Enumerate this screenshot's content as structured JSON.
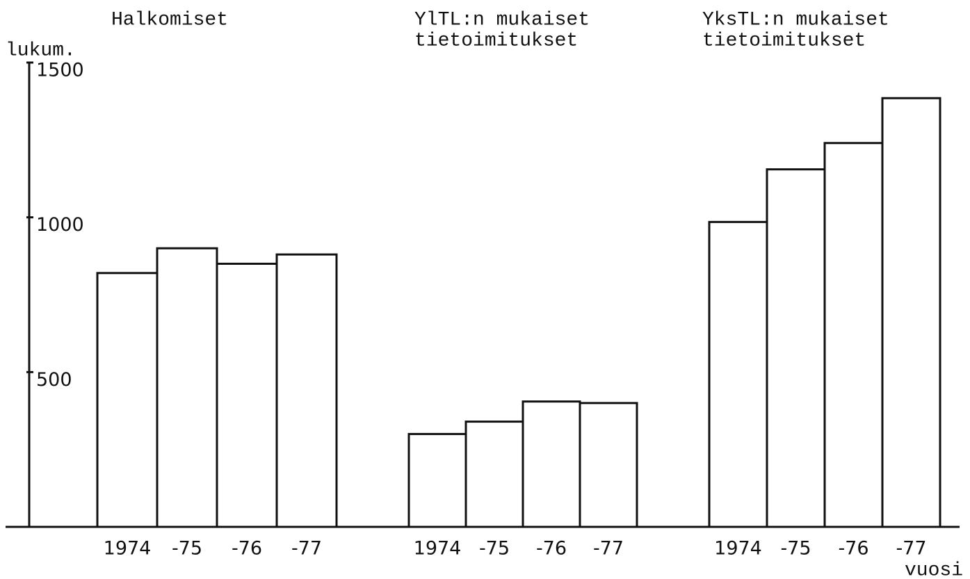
{
  "chart_data": {
    "type": "bar",
    "y_label": "lukum.",
    "x_label": "vuosi",
    "ylim": [
      0,
      1500
    ],
    "yticks": [
      500,
      1000,
      1500
    ],
    "color": "#111111",
    "groups": [
      {
        "name": [
          "Halkomiset"
        ],
        "categories": [
          "1974",
          "-75",
          "-76",
          "-77"
        ],
        "values": [
          820,
          900,
          850,
          880
        ]
      },
      {
        "name": [
          "YlTL:n mukaiset",
          "tietoimitukset"
        ],
        "categories": [
          "1974",
          "-75",
          "-76",
          "-77"
        ],
        "values": [
          300,
          340,
          405,
          400
        ]
      },
      {
        "name": [
          "YksTL:n mukaiset",
          "tietoimitukset"
        ],
        "categories": [
          "1974",
          "-75",
          "-76",
          "-77"
        ],
        "values": [
          985,
          1155,
          1240,
          1385
        ]
      }
    ]
  }
}
